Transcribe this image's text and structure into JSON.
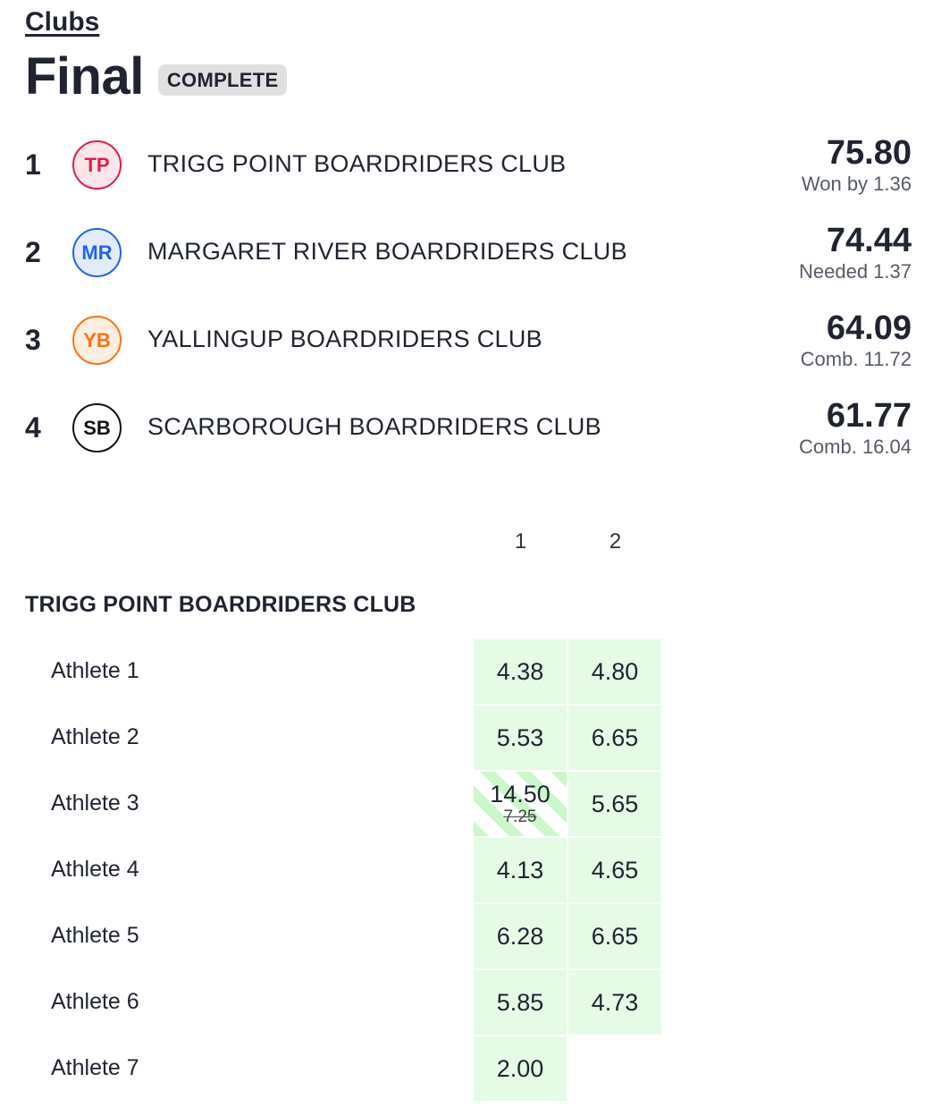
{
  "breadcrumb": "Clubs",
  "page_title": "Final",
  "status": "COMPLETE",
  "standings": [
    {
      "rank": "1",
      "initials": "TP",
      "club": "TRIGG POINT BOARDRIDERS CLUB",
      "score": "75.80",
      "note": "Won by 1.36",
      "color": "#e11d48"
    },
    {
      "rank": "2",
      "initials": "MR",
      "club": "MARGARET RIVER BOARDRIDERS CLUB",
      "score": "74.44",
      "note": "Needed 1.37",
      "color": "#2563eb"
    },
    {
      "rank": "3",
      "initials": "YB",
      "club": "YALLINGUP BOARDRIDERS CLUB",
      "score": "64.09",
      "note": "Comb. 11.72",
      "color": "#f97316"
    },
    {
      "rank": "4",
      "initials": "SB",
      "club": "SCARBOROUGH BOARDRIDERS CLUB",
      "score": "61.77",
      "note": "Comb. 16.04",
      "color": "#111111"
    }
  ],
  "wave_headers": [
    "1",
    "2"
  ],
  "team": {
    "name": "TRIGG POINT BOARDRIDERS CLUB",
    "athletes": [
      {
        "name": "Athlete 1",
        "wave1": "4.38",
        "wave2": "4.80"
      },
      {
        "name": "Athlete 2",
        "wave1": "5.53",
        "wave2": "6.65"
      },
      {
        "name": "Athlete 3",
        "wave1": "14.50",
        "wave1_original": "7.25",
        "wave2": "5.65"
      },
      {
        "name": "Athlete 4",
        "wave1": "4.13",
        "wave2": "4.65"
      },
      {
        "name": "Athlete 5",
        "wave1": "6.28",
        "wave2": "6.65"
      },
      {
        "name": "Athlete 6",
        "wave1": "5.85",
        "wave2": "4.73"
      },
      {
        "name": "Athlete 7",
        "wave1": "2.00"
      }
    ]
  }
}
